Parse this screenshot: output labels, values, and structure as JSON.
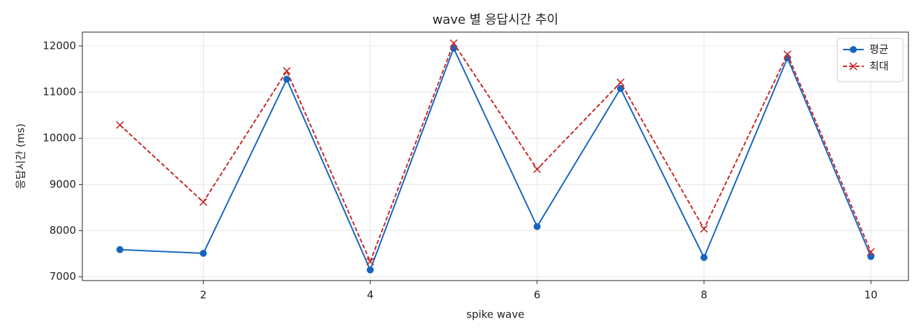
{
  "chart_data": {
    "type": "line",
    "title": "wave 별 응답시간 추이",
    "xlabel": "spike wave",
    "ylabel": "응답시간 (ms)",
    "x": [
      1,
      2,
      3,
      4,
      5,
      6,
      7,
      8,
      9,
      10
    ],
    "series": [
      {
        "name": "평균",
        "color": "#1565c0",
        "marker": "o",
        "linestyle": "solid",
        "values": [
          7590,
          7510,
          11280,
          7150,
          11950,
          8090,
          11080,
          7420,
          11740,
          7440
        ]
      },
      {
        "name": "최대",
        "color": "#c62828",
        "marker": "x",
        "linestyle": "dashed",
        "values": [
          10290,
          8620,
          11460,
          7330,
          12060,
          9330,
          11210,
          8040,
          11820,
          7540
        ]
      }
    ],
    "xlim": [
      0.55,
      10.45
    ],
    "xticks": [
      2,
      4,
      6,
      8,
      10
    ],
    "ylim": [
      6920,
      12300
    ],
    "yticks": [
      7000,
      8000,
      9000,
      10000,
      11000,
      12000
    ],
    "grid": true,
    "legend": "upper right"
  }
}
